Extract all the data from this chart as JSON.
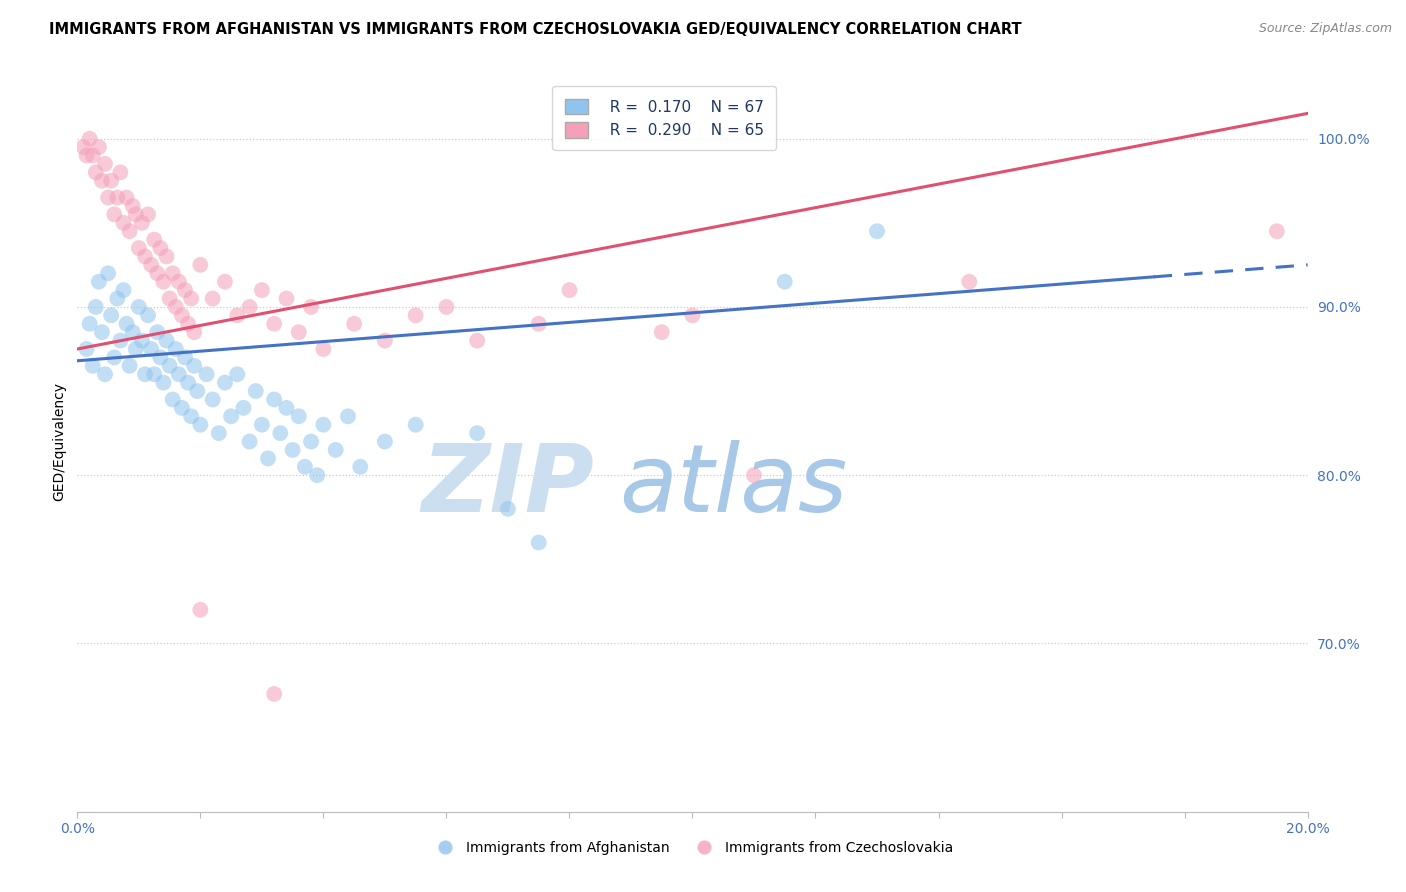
{
  "title": "IMMIGRANTS FROM AFGHANISTAN VS IMMIGRANTS FROM CZECHOSLOVAKIA GED/EQUIVALENCY CORRELATION CHART",
  "source": "Source: ZipAtlas.com",
  "ylabel": "GED/Equivalency",
  "yaxis_values": [
    70,
    80,
    90,
    100
  ],
  "xmin": 0.0,
  "xmax": 20.0,
  "ymin": 60.0,
  "ymax": 104.0,
  "color_afghanistan": "#8EC4ED",
  "color_czechoslovakia": "#F4A0B8",
  "color_line_afghanistan": "#4472C4",
  "color_line_czechoslovakia": "#E05070",
  "watermark_zip": "#C5D8EE",
  "watermark_atlas": "#A8C4E0",
  "scatter_size": 130,
  "scatter_alpha": 0.55,
  "line_width": 2.2,
  "grid_color": "#CCCCCC",
  "title_fontsize": 10.5,
  "source_fontsize": 9,
  "axis_label_fontsize": 10,
  "tick_fontsize": 10,
  "legend_fontsize": 11,
  "afg_line_x0": 0.0,
  "afg_line_y0": 86.8,
  "afg_line_x1": 20.0,
  "afg_line_y1": 92.5,
  "afg_solid_end": 17.5,
  "czk_line_x0": 0.0,
  "czk_line_y0": 87.5,
  "czk_line_x1": 20.0,
  "czk_line_y1": 101.5,
  "scatter_afghanistan": [
    [
      0.15,
      87.5
    ],
    [
      0.2,
      89.0
    ],
    [
      0.25,
      86.5
    ],
    [
      0.3,
      90.0
    ],
    [
      0.35,
      91.5
    ],
    [
      0.4,
      88.5
    ],
    [
      0.45,
      86.0
    ],
    [
      0.5,
      92.0
    ],
    [
      0.55,
      89.5
    ],
    [
      0.6,
      87.0
    ],
    [
      0.65,
      90.5
    ],
    [
      0.7,
      88.0
    ],
    [
      0.75,
      91.0
    ],
    [
      0.8,
      89.0
    ],
    [
      0.85,
      86.5
    ],
    [
      0.9,
      88.5
    ],
    [
      0.95,
      87.5
    ],
    [
      1.0,
      90.0
    ],
    [
      1.05,
      88.0
    ],
    [
      1.1,
      86.0
    ],
    [
      1.15,
      89.5
    ],
    [
      1.2,
      87.5
    ],
    [
      1.25,
      86.0
    ],
    [
      1.3,
      88.5
    ],
    [
      1.35,
      87.0
    ],
    [
      1.4,
      85.5
    ],
    [
      1.45,
      88.0
    ],
    [
      1.5,
      86.5
    ],
    [
      1.55,
      84.5
    ],
    [
      1.6,
      87.5
    ],
    [
      1.65,
      86.0
    ],
    [
      1.7,
      84.0
    ],
    [
      1.75,
      87.0
    ],
    [
      1.8,
      85.5
    ],
    [
      1.85,
      83.5
    ],
    [
      1.9,
      86.5
    ],
    [
      1.95,
      85.0
    ],
    [
      2.0,
      83.0
    ],
    [
      2.1,
      86.0
    ],
    [
      2.2,
      84.5
    ],
    [
      2.3,
      82.5
    ],
    [
      2.4,
      85.5
    ],
    [
      2.5,
      83.5
    ],
    [
      2.6,
      86.0
    ],
    [
      2.7,
      84.0
    ],
    [
      2.8,
      82.0
    ],
    [
      2.9,
      85.0
    ],
    [
      3.0,
      83.0
    ],
    [
      3.1,
      81.0
    ],
    [
      3.2,
      84.5
    ],
    [
      3.3,
      82.5
    ],
    [
      3.4,
      84.0
    ],
    [
      3.5,
      81.5
    ],
    [
      3.6,
      83.5
    ],
    [
      3.7,
      80.5
    ],
    [
      3.8,
      82.0
    ],
    [
      3.9,
      80.0
    ],
    [
      4.0,
      83.0
    ],
    [
      4.2,
      81.5
    ],
    [
      4.4,
      83.5
    ],
    [
      4.6,
      80.5
    ],
    [
      5.0,
      82.0
    ],
    [
      5.5,
      83.0
    ],
    [
      6.5,
      82.5
    ],
    [
      7.0,
      78.0
    ],
    [
      7.5,
      76.0
    ],
    [
      11.5,
      91.5
    ],
    [
      13.0,
      94.5
    ]
  ],
  "scatter_czechoslovakia": [
    [
      0.1,
      99.5
    ],
    [
      0.15,
      99.0
    ],
    [
      0.2,
      100.0
    ],
    [
      0.25,
      99.0
    ],
    [
      0.3,
      98.0
    ],
    [
      0.35,
      99.5
    ],
    [
      0.4,
      97.5
    ],
    [
      0.45,
      98.5
    ],
    [
      0.5,
      96.5
    ],
    [
      0.55,
      97.5
    ],
    [
      0.6,
      95.5
    ],
    [
      0.65,
      96.5
    ],
    [
      0.7,
      98.0
    ],
    [
      0.75,
      95.0
    ],
    [
      0.8,
      96.5
    ],
    [
      0.85,
      94.5
    ],
    [
      0.9,
      96.0
    ],
    [
      0.95,
      95.5
    ],
    [
      1.0,
      93.5
    ],
    [
      1.05,
      95.0
    ],
    [
      1.1,
      93.0
    ],
    [
      1.15,
      95.5
    ],
    [
      1.2,
      92.5
    ],
    [
      1.25,
      94.0
    ],
    [
      1.3,
      92.0
    ],
    [
      1.35,
      93.5
    ],
    [
      1.4,
      91.5
    ],
    [
      1.45,
      93.0
    ],
    [
      1.5,
      90.5
    ],
    [
      1.55,
      92.0
    ],
    [
      1.6,
      90.0
    ],
    [
      1.65,
      91.5
    ],
    [
      1.7,
      89.5
    ],
    [
      1.75,
      91.0
    ],
    [
      1.8,
      89.0
    ],
    [
      1.85,
      90.5
    ],
    [
      1.9,
      88.5
    ],
    [
      2.0,
      92.5
    ],
    [
      2.2,
      90.5
    ],
    [
      2.4,
      91.5
    ],
    [
      2.6,
      89.5
    ],
    [
      2.8,
      90.0
    ],
    [
      3.0,
      91.0
    ],
    [
      3.2,
      89.0
    ],
    [
      3.4,
      90.5
    ],
    [
      3.6,
      88.5
    ],
    [
      3.8,
      90.0
    ],
    [
      4.0,
      87.5
    ],
    [
      4.5,
      89.0
    ],
    [
      5.0,
      88.0
    ],
    [
      5.5,
      89.5
    ],
    [
      6.0,
      90.0
    ],
    [
      6.5,
      88.0
    ],
    [
      7.5,
      89.0
    ],
    [
      8.0,
      91.0
    ],
    [
      9.5,
      88.5
    ],
    [
      10.0,
      89.5
    ],
    [
      11.0,
      80.0
    ],
    [
      14.5,
      91.5
    ],
    [
      19.5,
      94.5
    ],
    [
      3.2,
      67.0
    ],
    [
      2.0,
      72.0
    ]
  ]
}
